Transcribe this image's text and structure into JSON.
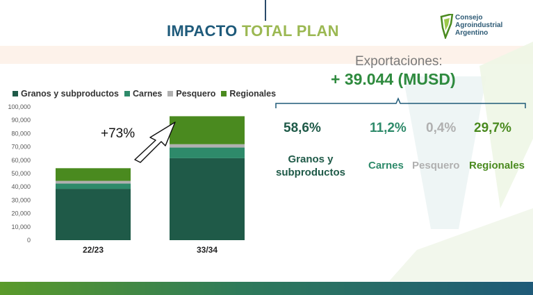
{
  "title": {
    "part1": "IMPACTO",
    "part2": "TOTAL PLAN"
  },
  "logo": {
    "line1": "Consejo",
    "line2": "Agroindustrial",
    "line3": "Argentino"
  },
  "exports": {
    "label": "Exportaciones:",
    "value": "+ 39.044 (MUSD)"
  },
  "breakdown": [
    {
      "pct": "58,6%",
      "label": "Granos y subproductos",
      "color": "#1f5a48"
    },
    {
      "pct": "11,2%",
      "label": "Carnes",
      "color": "#2e8a6a"
    },
    {
      "pct": "0,4%",
      "label": "Pesquero",
      "color": "#b0b0b0"
    },
    {
      "pct": "29,7%",
      "label": "Regionales",
      "color": "#4a8a1f"
    }
  ],
  "growth_label": "+73%",
  "chart_data": {
    "type": "bar",
    "stacked": true,
    "categories": [
      "22/23",
      "33/34"
    ],
    "series": [
      {
        "name": "Granos y subproductos",
        "color": "#1f5a48",
        "values": [
          38500,
          61500
        ]
      },
      {
        "name": "Carnes",
        "color": "#2e8a6a",
        "values": [
          4000,
          8000
        ]
      },
      {
        "name": "Pesquero",
        "color": "#b0b0b0",
        "values": [
          2000,
          2500
        ]
      },
      {
        "name": "Regionales",
        "color": "#4a8a1f",
        "values": [
          9500,
          21000
        ]
      }
    ],
    "ylim": [
      0,
      100000
    ],
    "yticks": [
      "0",
      "10,000",
      "20,000",
      "30,000",
      "40,000",
      "50,000",
      "60,000",
      "70,000",
      "80,000",
      "90,000",
      "100,000"
    ],
    "legend_position": "top",
    "grid": false
  }
}
